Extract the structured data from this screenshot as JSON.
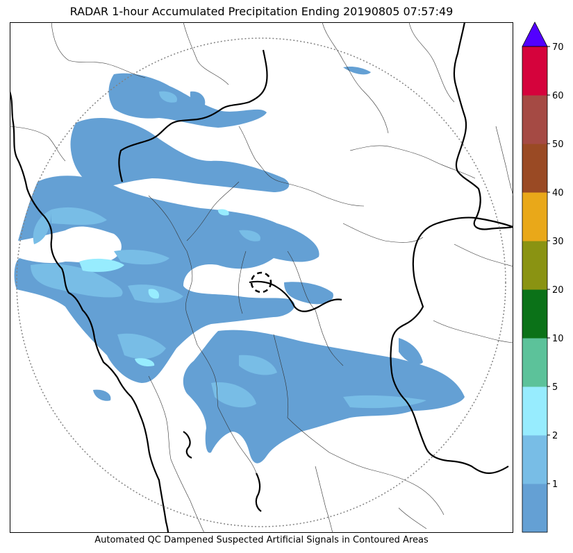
{
  "title": "RADAR 1-hour Accumulated Precipitation Ending 20190805 07:57:49",
  "footer": "Automated QC Dampened Suspected Artificial Signals in Contoured Areas",
  "colorbar": {
    "tick_labels": [
      "1",
      "2",
      "5",
      "10",
      "20",
      "30",
      "40",
      "50",
      "60",
      "70"
    ],
    "colors": [
      "#64a0d4",
      "#78bde6",
      "#97ecfe",
      "#5cc29a",
      "#0b7218",
      "#8a9312",
      "#e9a819",
      "#9a4a24",
      "#a54a44",
      "#d5033c"
    ],
    "extend_color": "#5200ff"
  },
  "map": {
    "precip_colors": {
      "light": "#64a0d4",
      "medium": "#78bde6",
      "heavy": "#97ecfe"
    },
    "range_ring_color": "#808080",
    "boundary_color": "#000000"
  }
}
